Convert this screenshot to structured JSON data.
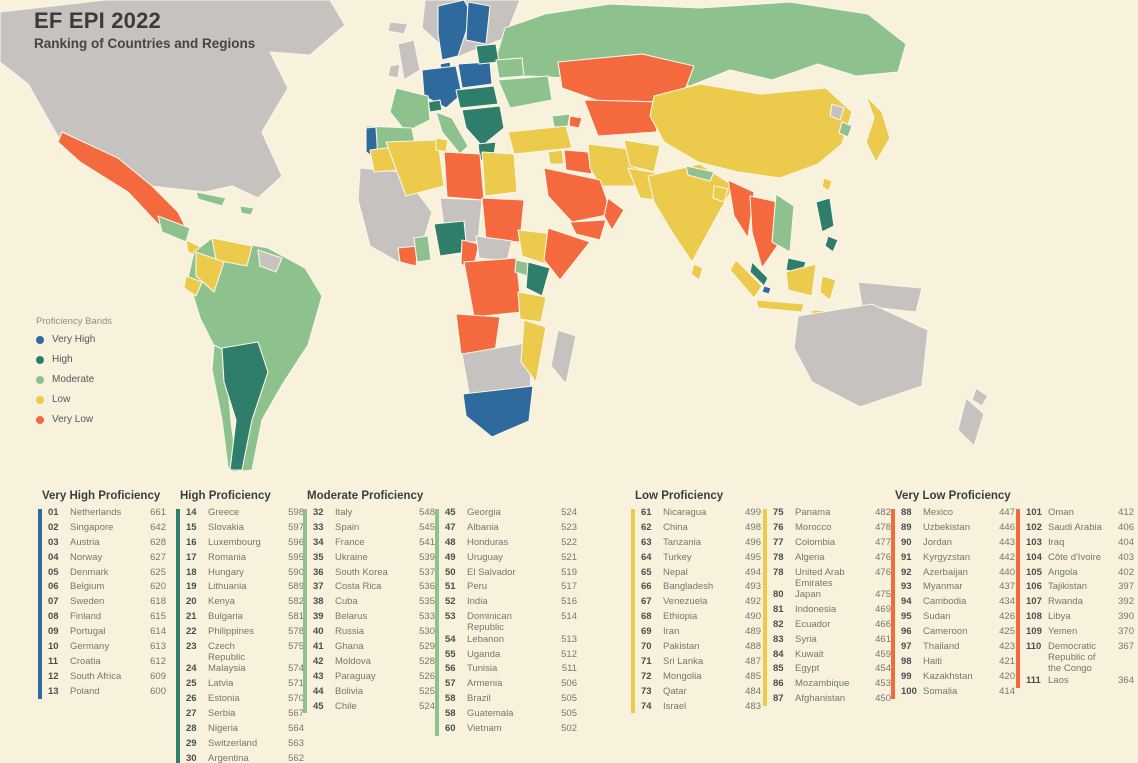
{
  "header": {
    "title": "EF EPI 2022",
    "subtitle": "Ranking of Countries and Regions"
  },
  "colors": {
    "very_high": "#2f6a9e",
    "high": "#2f7d6b",
    "moderate": "#8dc28f",
    "low": "#ecca4c",
    "very_low": "#f4693e",
    "no_data": "#c6c2bf",
    "background": "#f8f2dd"
  },
  "legend": {
    "title": "Proficiency Bands",
    "items": [
      {
        "label": "Very High",
        "band": "very_high"
      },
      {
        "label": "High",
        "band": "high"
      },
      {
        "label": "Moderate",
        "band": "moderate"
      },
      {
        "label": "Low",
        "band": "low"
      },
      {
        "label": "Very Low",
        "band": "very_low"
      }
    ]
  },
  "ranking": {
    "sections": [
      {
        "label": "Very High Proficiency",
        "band": "very_high",
        "columns": [
          [
            {
              "rank": "01",
              "country": "Netherlands",
              "score": 661
            },
            {
              "rank": "02",
              "country": "Singapore",
              "score": 642
            },
            {
              "rank": "03",
              "country": "Austria",
              "score": 628
            },
            {
              "rank": "04",
              "country": "Norway",
              "score": 627
            },
            {
              "rank": "05",
              "country": "Denmark",
              "score": 625
            },
            {
              "rank": "06",
              "country": "Belgium",
              "score": 620
            },
            {
              "rank": "07",
              "country": "Sweden",
              "score": 618
            },
            {
              "rank": "08",
              "country": "Finland",
              "score": 615
            },
            {
              "rank": "09",
              "country": "Portugal",
              "score": 614
            },
            {
              "rank": "10",
              "country": "Germany",
              "score": 613
            },
            {
              "rank": "11",
              "country": "Croatia",
              "score": 612
            },
            {
              "rank": "12",
              "country": "South Africa",
              "score": 609
            },
            {
              "rank": "13",
              "country": "Poland",
              "score": 600
            }
          ]
        ]
      },
      {
        "label": "High Proficiency",
        "band": "high",
        "columns": [
          [
            {
              "rank": "14",
              "country": "Greece",
              "score": 598
            },
            {
              "rank": "15",
              "country": "Slovakia",
              "score": 597
            },
            {
              "rank": "16",
              "country": "Luxembourg",
              "score": 596
            },
            {
              "rank": "17",
              "country": "Romania",
              "score": 595
            },
            {
              "rank": "18",
              "country": "Hungary",
              "score": 590
            },
            {
              "rank": "19",
              "country": "Lithuania",
              "score": 589
            },
            {
              "rank": "20",
              "country": "Kenya",
              "score": 582
            },
            {
              "rank": "21",
              "country": "Bulgaria",
              "score": 581
            },
            {
              "rank": "22",
              "country": "Philippines",
              "score": 578
            },
            {
              "rank": "23",
              "country": "Czech Republic",
              "score": 575
            },
            {
              "rank": "24",
              "country": "Malaysia",
              "score": 574
            },
            {
              "rank": "25",
              "country": "Latvia",
              "score": 571
            },
            {
              "rank": "26",
              "country": "Estonia",
              "score": 570
            },
            {
              "rank": "27",
              "country": "Serbia",
              "score": 567
            },
            {
              "rank": "28",
              "country": "Nigeria",
              "score": 564
            },
            {
              "rank": "29",
              "country": "Switzerland",
              "score": 563
            },
            {
              "rank": "30",
              "country": "Argentina",
              "score": 562
            }
          ]
        ]
      },
      {
        "label": "Moderate Proficiency",
        "band": "moderate",
        "columns": [
          [
            {
              "rank": "32",
              "country": "Italy",
              "score": 548
            },
            {
              "rank": "33",
              "country": "Spain",
              "score": 545
            },
            {
              "rank": "34",
              "country": "France",
              "score": 541
            },
            {
              "rank": "35",
              "country": "Ukraine",
              "score": 539
            },
            {
              "rank": "36",
              "country": "South Korea",
              "score": 537
            },
            {
              "rank": "37",
              "country": "Costa Rica",
              "score": 536
            },
            {
              "rank": "38",
              "country": "Cuba",
              "score": 535
            },
            {
              "rank": "39",
              "country": "Belarus",
              "score": 533
            },
            {
              "rank": "40",
              "country": "Russia",
              "score": 530
            },
            {
              "rank": "41",
              "country": "Ghana",
              "score": 529
            },
            {
              "rank": "42",
              "country": "Moldova",
              "score": 528
            },
            {
              "rank": "43",
              "country": "Paraguay",
              "score": 526
            },
            {
              "rank": "44",
              "country": "Bolivia",
              "score": 525
            },
            {
              "rank": "45",
              "country": "Chile",
              "score": 524
            }
          ],
          [
            {
              "rank": "45",
              "country": "Georgia",
              "score": 524
            },
            {
              "rank": "47",
              "country": "Albania",
              "score": 523
            },
            {
              "rank": "48",
              "country": "Honduras",
              "score": 522
            },
            {
              "rank": "49",
              "country": "Uruguay",
              "score": 521
            },
            {
              "rank": "50",
              "country": "El Salvador",
              "score": 519
            },
            {
              "rank": "51",
              "country": "Peru",
              "score": 517
            },
            {
              "rank": "52",
              "country": "India",
              "score": 516
            },
            {
              "rank": "53",
              "country": "Dominican Republic",
              "score": 514
            },
            {
              "rank": "54",
              "country": "Lebanon",
              "score": 513
            },
            {
              "rank": "55",
              "country": "Uganda",
              "score": 512
            },
            {
              "rank": "56",
              "country": "Tunisia",
              "score": 511
            },
            {
              "rank": "57",
              "country": "Armenia",
              "score": 506
            },
            {
              "rank": "58",
              "country": "Brazil",
              "score": 505
            },
            {
              "rank": "58",
              "country": "Guatemala",
              "score": 505
            },
            {
              "rank": "60",
              "country": "Vietnam",
              "score": 502
            }
          ]
        ]
      },
      {
        "label": "Low Proficiency",
        "band": "low",
        "columns": [
          [
            {
              "rank": "61",
              "country": "Nicaragua",
              "score": 499
            },
            {
              "rank": "62",
              "country": "China",
              "score": 498
            },
            {
              "rank": "63",
              "country": "Tanzania",
              "score": 496
            },
            {
              "rank": "64",
              "country": "Turkey",
              "score": 495
            },
            {
              "rank": "65",
              "country": "Nepal",
              "score": 494
            },
            {
              "rank": "66",
              "country": "Bangladesh",
              "score": 493
            },
            {
              "rank": "67",
              "country": "Venezuela",
              "score": 492
            },
            {
              "rank": "68",
              "country": "Ethiopia",
              "score": 490
            },
            {
              "rank": "69",
              "country": "Iran",
              "score": 489
            },
            {
              "rank": "70",
              "country": "Pakistan",
              "score": 488
            },
            {
              "rank": "71",
              "country": "Sri Lanka",
              "score": 487
            },
            {
              "rank": "72",
              "country": "Mongolia",
              "score": 485
            },
            {
              "rank": "73",
              "country": "Qatar",
              "score": 484
            },
            {
              "rank": "74",
              "country": "Israel",
              "score": 483
            }
          ],
          [
            {
              "rank": "75",
              "country": "Panama",
              "score": 482
            },
            {
              "rank": "76",
              "country": "Morocco",
              "score": 478
            },
            {
              "rank": "77",
              "country": "Colombia",
              "score": 477
            },
            {
              "rank": "78",
              "country": "Algeria",
              "score": 476
            },
            {
              "rank": "78",
              "country": "United Arab Emirates",
              "score": 476
            },
            {
              "rank": "80",
              "country": "Japan",
              "score": 475
            },
            {
              "rank": "81",
              "country": "Indonesia",
              "score": 469
            },
            {
              "rank": "82",
              "country": "Ecuador",
              "score": 466
            },
            {
              "rank": "83",
              "country": "Syria",
              "score": 461
            },
            {
              "rank": "84",
              "country": "Kuwait",
              "score": 459
            },
            {
              "rank": "85",
              "country": "Egypt",
              "score": 454
            },
            {
              "rank": "86",
              "country": "Mozambique",
              "score": 453
            },
            {
              "rank": "87",
              "country": "Afghanistan",
              "score": 450
            }
          ]
        ]
      },
      {
        "label": "Very Low Proficiency",
        "band": "very_low",
        "columns": [
          [
            {
              "rank": "88",
              "country": "Mexico",
              "score": 447
            },
            {
              "rank": "89",
              "country": "Uzbekistan",
              "score": 446
            },
            {
              "rank": "90",
              "country": "Jordan",
              "score": 443
            },
            {
              "rank": "91",
              "country": "Kyrgyzstan",
              "score": 442
            },
            {
              "rank": "92",
              "country": "Azerbaijan",
              "score": 440
            },
            {
              "rank": "93",
              "country": "Myanmar",
              "score": 437
            },
            {
              "rank": "94",
              "country": "Cambodia",
              "score": 434
            },
            {
              "rank": "95",
              "country": "Sudan",
              "score": 426
            },
            {
              "rank": "96",
              "country": "Cameroon",
              "score": 425
            },
            {
              "rank": "97",
              "country": "Thailand",
              "score": 423
            },
            {
              "rank": "98",
              "country": "Haiti",
              "score": 421
            },
            {
              "rank": "99",
              "country": "Kazakhstan",
              "score": 420
            },
            {
              "rank": "100",
              "country": "Somalia",
              "score": 414
            }
          ],
          [
            {
              "rank": "101",
              "country": "Oman",
              "score": 412
            },
            {
              "rank": "102",
              "country": "Saudi Arabia",
              "score": 406
            },
            {
              "rank": "103",
              "country": "Iraq",
              "score": 404
            },
            {
              "rank": "104",
              "country": "Côte d'Ivoire",
              "score": 403
            },
            {
              "rank": "105",
              "country": "Angola",
              "score": 402
            },
            {
              "rank": "106",
              "country": "Tajikistan",
              "score": 397
            },
            {
              "rank": "107",
              "country": "Rwanda",
              "score": 392
            },
            {
              "rank": "108",
              "country": "Libya",
              "score": 390
            },
            {
              "rank": "109",
              "country": "Yemen",
              "score": 370
            },
            {
              "rank": "110",
              "country": "Democratic Republic of the Congo",
              "score": 367
            },
            {
              "rank": "111",
              "country": "Laos",
              "score": 364
            }
          ]
        ]
      }
    ]
  }
}
